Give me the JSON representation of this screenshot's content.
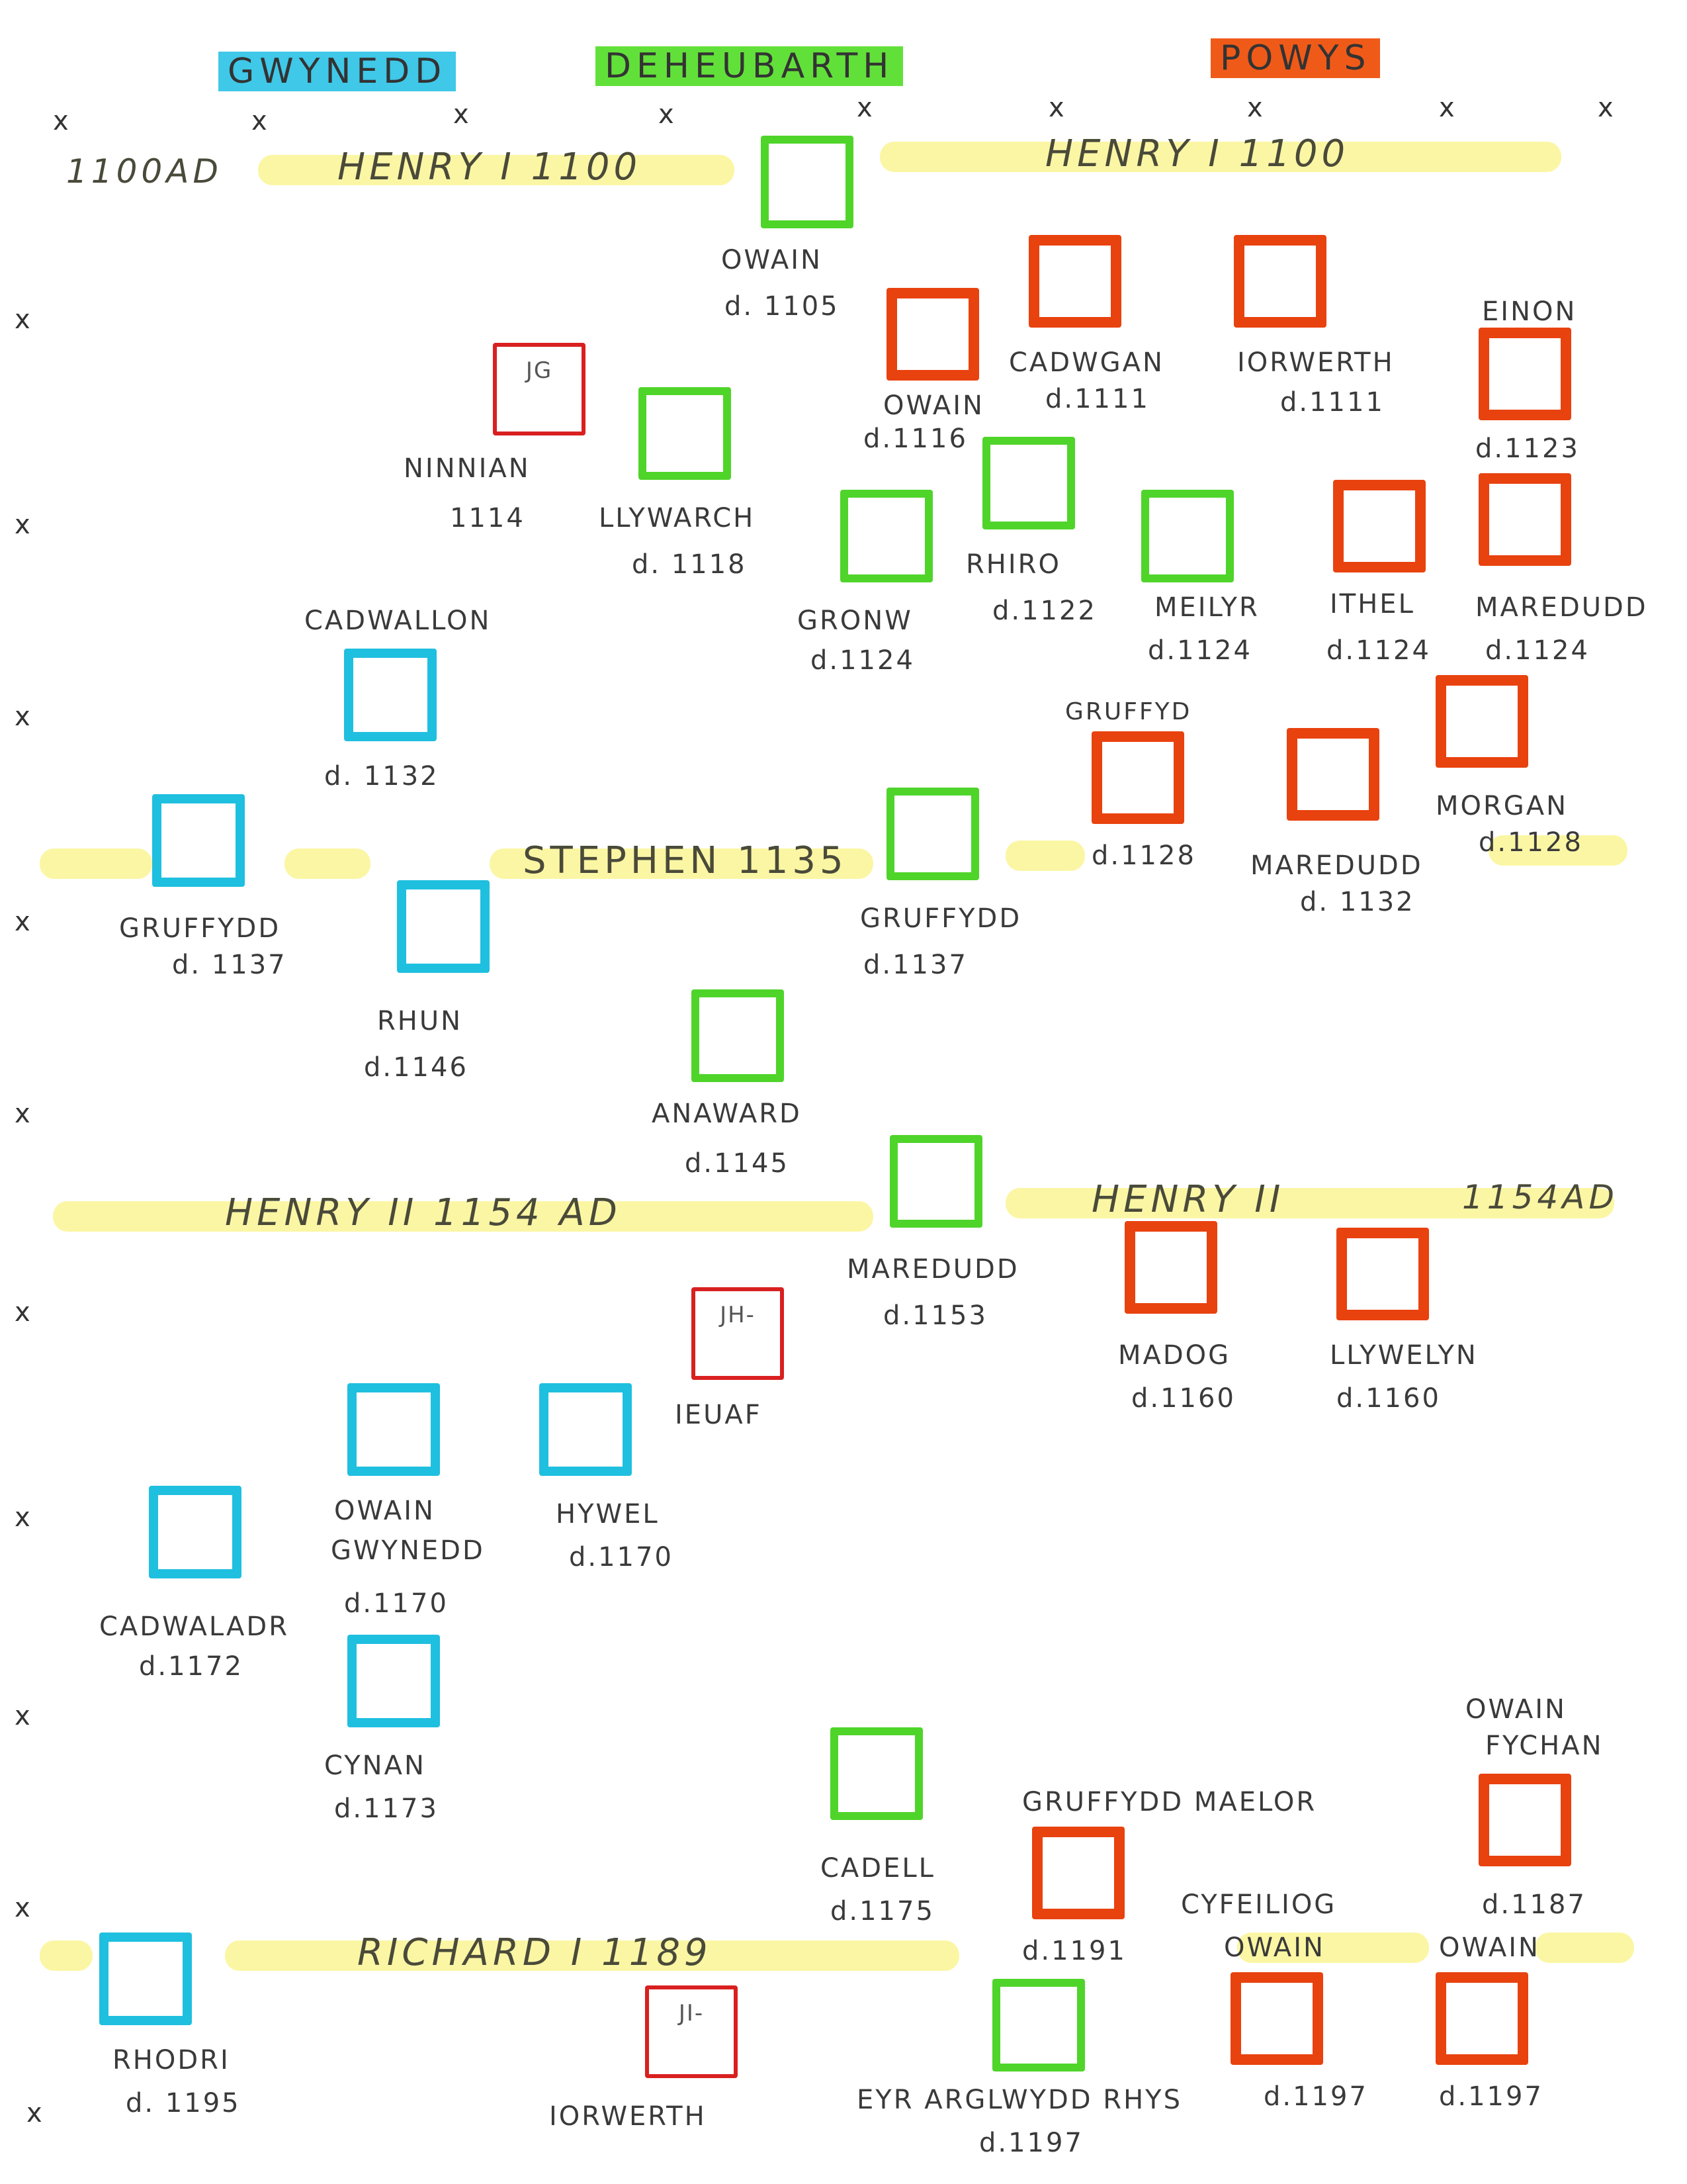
{
  "legend": {
    "gwynedd": "GWYNEDD",
    "deheubarth": "DEHEUBARTH",
    "powys": "POWYS"
  },
  "colors": {
    "gwynedd": "#1fbfdf",
    "deheubarth": "#4fd42a",
    "powys": "#e8420f",
    "marker": "#d92020",
    "timeline": "#fbf59a"
  },
  "timeline": {
    "year_start": "1100AD",
    "henry1_left": "HENRY I   1100",
    "henry1_right": "HENRY I     1100",
    "stephen": "STEPHEN   1135",
    "henry2_left": "HENRY II     1154 AD",
    "henry2_right": "HENRY II",
    "henry2_right_year": "1154AD",
    "richard1": "RICHARD   I    1189"
  },
  "row_marker": "x",
  "people": {
    "owain_1105": {
      "name": "OWAIN",
      "death": "d. 1105"
    },
    "owain_1116": {
      "name": "OWAIN",
      "death": "d.1116"
    },
    "cadwgan": {
      "name": "CADWGAN",
      "death": "d.1111"
    },
    "iorwerth_1111": {
      "name": "IORWERTH",
      "death": "d.1111"
    },
    "einon": {
      "name": "EINON",
      "death": "d.1123"
    },
    "ninnian": {
      "name": "NINNIAN",
      "death": "1114",
      "box_text": "JG"
    },
    "llywarch": {
      "name": "LLYWARCH",
      "death": "d. 1118"
    },
    "rhiro": {
      "name": "RHIRO",
      "death": "d.1122"
    },
    "gronw": {
      "name": "GRONW",
      "death": "d.1124"
    },
    "meilyr": {
      "name": "MEILYR",
      "death": "d.1124"
    },
    "ithel": {
      "name": "ITHEL",
      "death": "d.1124"
    },
    "maredudd_1124": {
      "name": "MAREDUDD",
      "death": "d.1124"
    },
    "cadwallon": {
      "name": "CADWALLON",
      "death": "d. 1132"
    },
    "gruffydd_1128": {
      "name": "GRUFFYD",
      "death": "d.1128"
    },
    "maredudd_1132": {
      "name": "MAREDUDD",
      "death": "d. 1132"
    },
    "morgan": {
      "name": "MORGAN",
      "death": "d.1128"
    },
    "gruffydd_g_1137": {
      "name": "GRUFFYDD",
      "death": "d. 1137"
    },
    "gruffydd_d_1137": {
      "name": "GRUFFYDD",
      "death": "d.1137"
    },
    "rhun": {
      "name": "RHUN",
      "death": "d.1146"
    },
    "anarawd": {
      "name": "ANAWARD",
      "death": "d.1145"
    },
    "maredudd_1153": {
      "name": "MAREDUDD",
      "death": "d.1153"
    },
    "madog": {
      "name": "MADOG",
      "death": "d.1160"
    },
    "llywelyn": {
      "name": "LLYWELYN",
      "death": "d.1160"
    },
    "ieuaf": {
      "name": "IEUAF",
      "box_text": "JH-"
    },
    "owain_gwynedd": {
      "name": "OWAIN",
      "name2": "GWYNEDD",
      "death": "d.1170"
    },
    "hywel": {
      "name": "HYWEL",
      "death": "d.1170"
    },
    "cadwaladr": {
      "name": "CADWALADR",
      "death": "d.1172"
    },
    "cynan": {
      "name": "CYNAN",
      "death": "d.1173"
    },
    "cadell": {
      "name": "CADELL",
      "death": "d.1175"
    },
    "gruffydd_maelor": {
      "name": "GRUFFYDD MAELOR",
      "death": "d.1191"
    },
    "owain_fychan": {
      "name": "OWAIN",
      "name2": "FYCHAN",
      "death": "d.1187"
    },
    "owain_cyfeiliog": {
      "name": "CYFEILIOG",
      "name2": "OWAIN",
      "death": "d.1197"
    },
    "owain_1197": {
      "name": "OWAIN",
      "death": "d.1197"
    },
    "rhodri": {
      "name": "RHODRI",
      "death": "d. 1195"
    },
    "iorwerth_ji": {
      "name": "IORWERTH",
      "box_text": "JI-"
    },
    "rhys": {
      "name": "EYR ARGLWYDD RHYS",
      "death": "d.1197"
    }
  }
}
